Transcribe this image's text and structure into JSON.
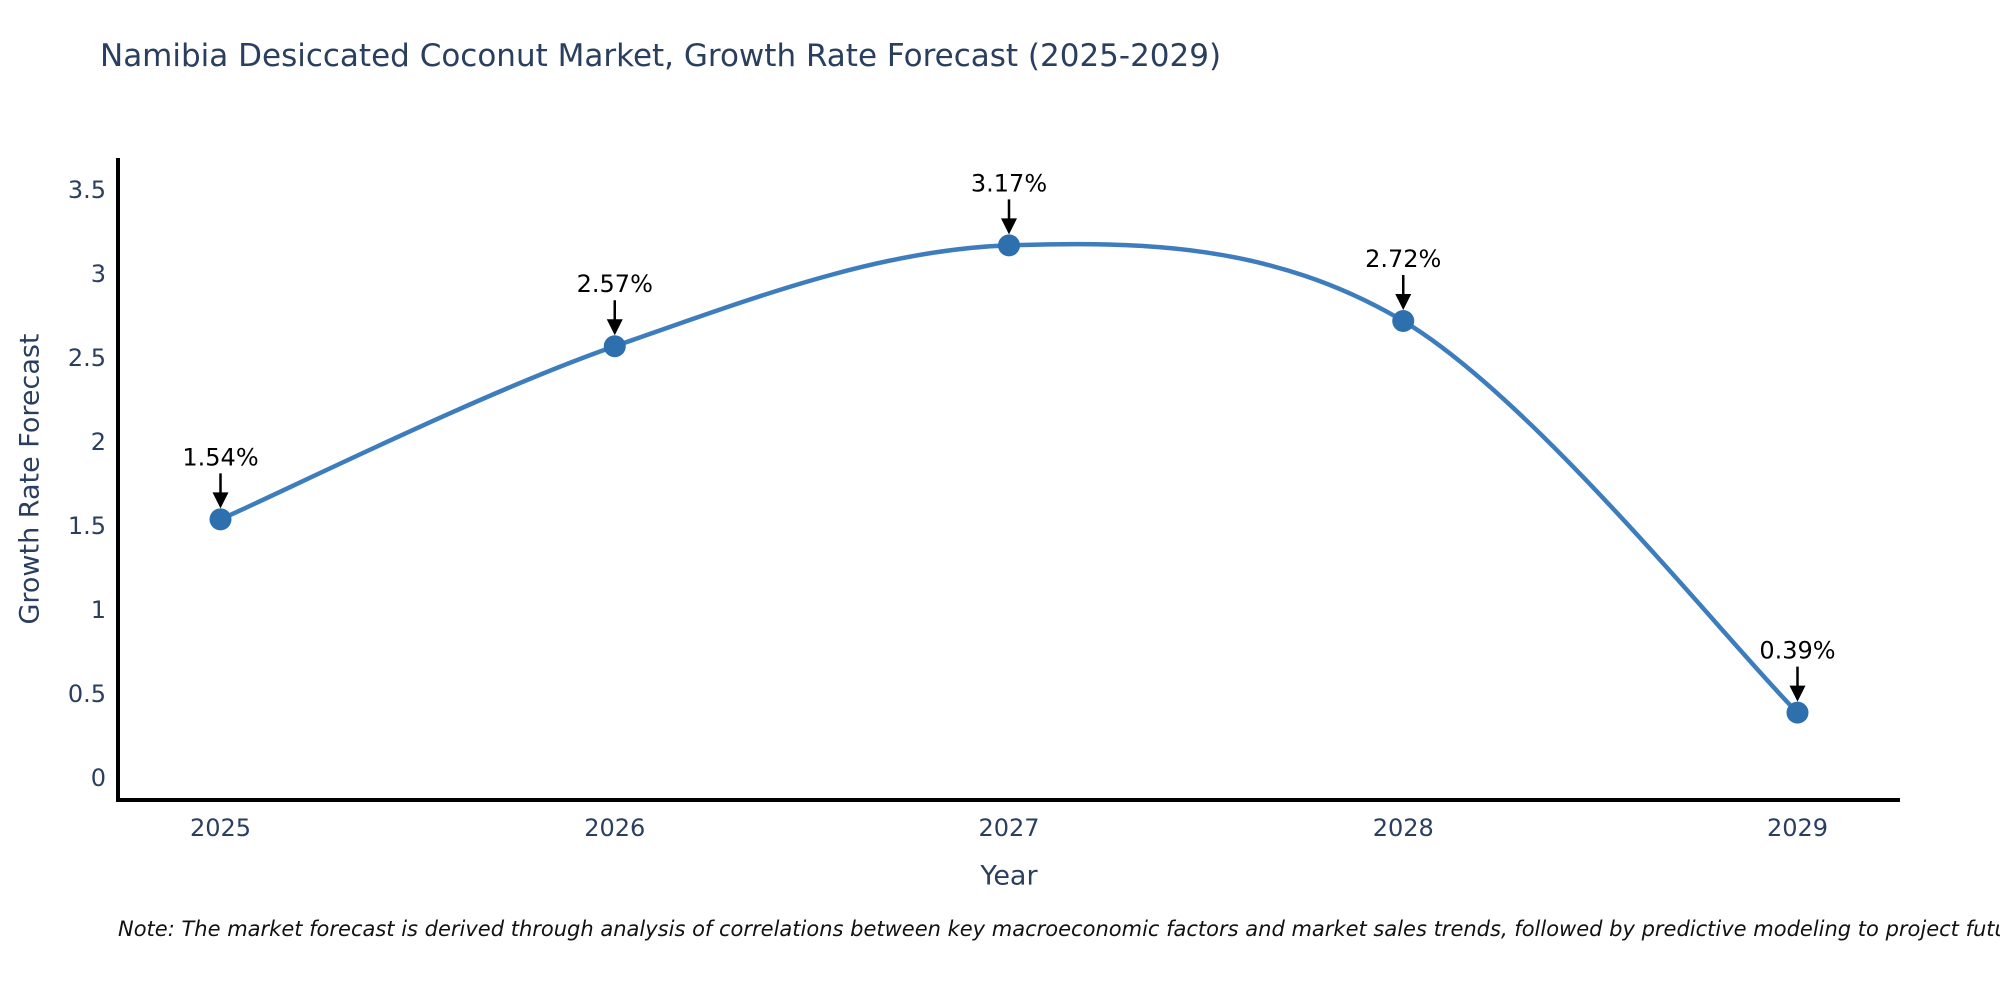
{
  "page": {
    "background": "#ffffff"
  },
  "chart_data": {
    "type": "line",
    "title": "Namibia Desiccated Coconut Market, Growth Rate Forecast (2025-2029)",
    "xlabel": "Year",
    "ylabel": "Growth Rate Forecast",
    "x": [
      2025,
      2026,
      2027,
      2028,
      2029
    ],
    "series": [
      {
        "name": "Growth Rate Forecast",
        "values": [
          1.54,
          2.57,
          3.17,
          2.72,
          0.39
        ]
      }
    ],
    "point_labels": [
      "1.54%",
      "2.57%",
      "3.17%",
      "2.72%",
      "0.39%"
    ],
    "xtick_labels": [
      "2025",
      "2026",
      "2027",
      "2028",
      "2029"
    ],
    "yticks": [
      0,
      0.5,
      1,
      1.5,
      2,
      2.5,
      3,
      3.5
    ],
    "ytick_labels": [
      "0",
      "0.5",
      "1",
      "1.5",
      "2",
      "2.5",
      "3",
      "3.5"
    ],
    "xlim": [
      2024.74,
      2029.26
    ],
    "ylim": [
      -0.13,
      3.69
    ],
    "grid": false,
    "legend": "none",
    "line_shape": "spline",
    "colors": {
      "line": "#3d7dbd",
      "marker": "#2e6fae",
      "annotation": "#000000",
      "axis_line": "#000000",
      "title_text": "#2a3f5f",
      "axis_text": "#2a3f5f",
      "note_text": "#111111"
    }
  },
  "note": {
    "text": "Note: The market forecast is derived through analysis of correlations between key macroeconomic factors and market sales trends, followed by predictive modeling to project future sales"
  }
}
